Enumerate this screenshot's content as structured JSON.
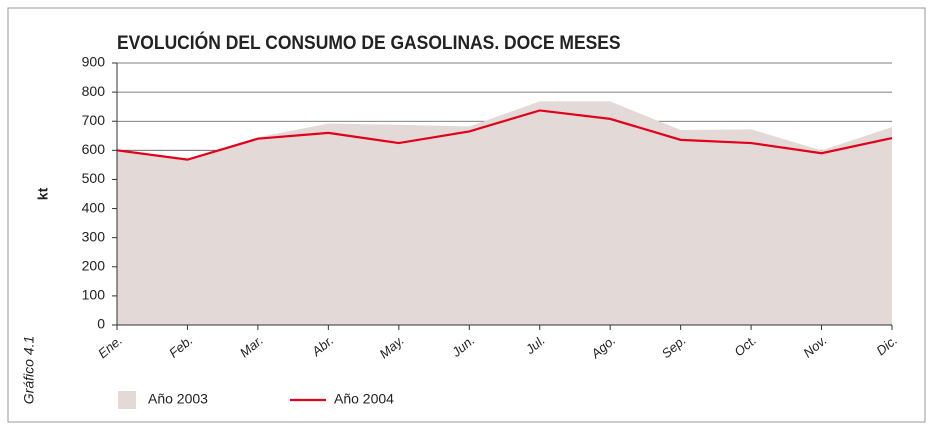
{
  "chart_data": {
    "type": "line",
    "title": "EVOLUCIÓN DEL CONSUMO DE GASOLINAS. DOCE MESES",
    "y_label": "kt",
    "side_label": "Gráfico 4.1",
    "categories": [
      "Ene.",
      "Feb.",
      "Mar.",
      "Abr.",
      "May.",
      "Jun.",
      "Jul.",
      "Ago.",
      "Sep.",
      "Oct.",
      "Nov.",
      "Dic."
    ],
    "series": [
      {
        "name": "Año 2003",
        "kind": "area",
        "color": "#e3d9d6",
        "values": [
          600,
          570,
          645,
          692,
          688,
          682,
          768,
          768,
          670,
          672,
          600,
          680
        ]
      },
      {
        "name": "Año 2004",
        "kind": "line",
        "color": "#e2001a",
        "values": [
          600,
          568,
          640,
          660,
          625,
          665,
          737,
          708,
          636,
          625,
          590,
          642
        ]
      }
    ],
    "ylim": [
      0,
      900
    ],
    "yticks": [
      0,
      100,
      200,
      300,
      400,
      500,
      600,
      700,
      800,
      900
    ],
    "grid": true
  }
}
